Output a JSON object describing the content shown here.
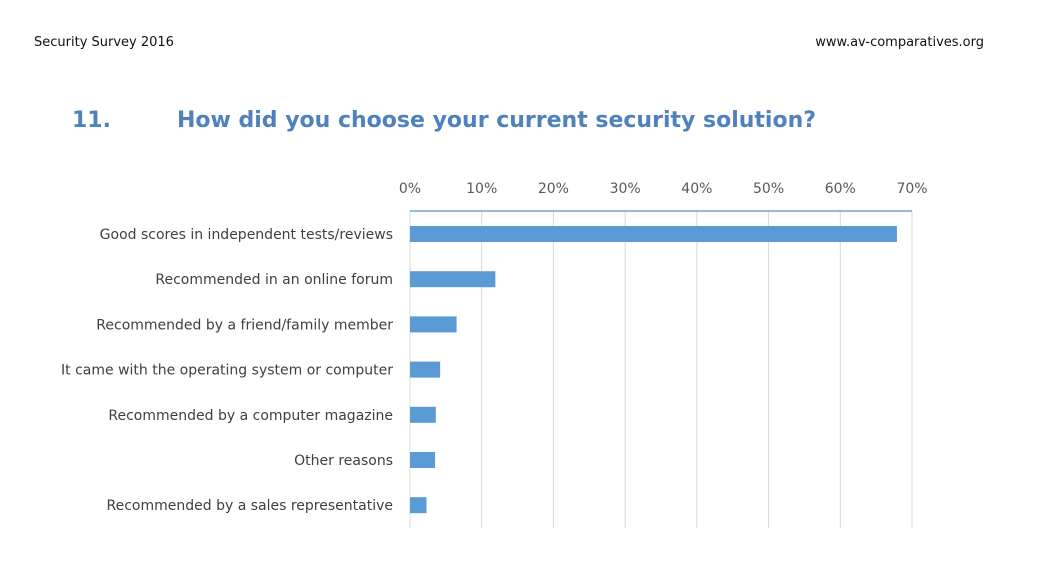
{
  "header": {
    "left": "Security Survey 2016",
    "right": "www.av-comparatives.org"
  },
  "question": {
    "number": "11.",
    "text": "How did you choose your current security solution?"
  },
  "chart_data": {
    "type": "bar",
    "orientation": "horizontal",
    "title": "How did you choose your current security solution?",
    "categories": [
      "Good scores in independent tests/reviews",
      "Recommended in an online forum",
      "Recommended by a friend/family member",
      "It came with the operating system or computer",
      "Recommended by a computer magazine",
      "Other reasons",
      "Recommended by a sales representative"
    ],
    "values": [
      67.9,
      11.9,
      6.5,
      4.2,
      3.6,
      3.5,
      2.3
    ],
    "unit": "%",
    "xlim": [
      0,
      70
    ],
    "xticks": [
      "0%",
      "10%",
      "20%",
      "30%",
      "40%",
      "50%",
      "60%",
      "70%"
    ],
    "axis_position": "top",
    "grid": true,
    "bar_color": "#5b9bd5"
  }
}
